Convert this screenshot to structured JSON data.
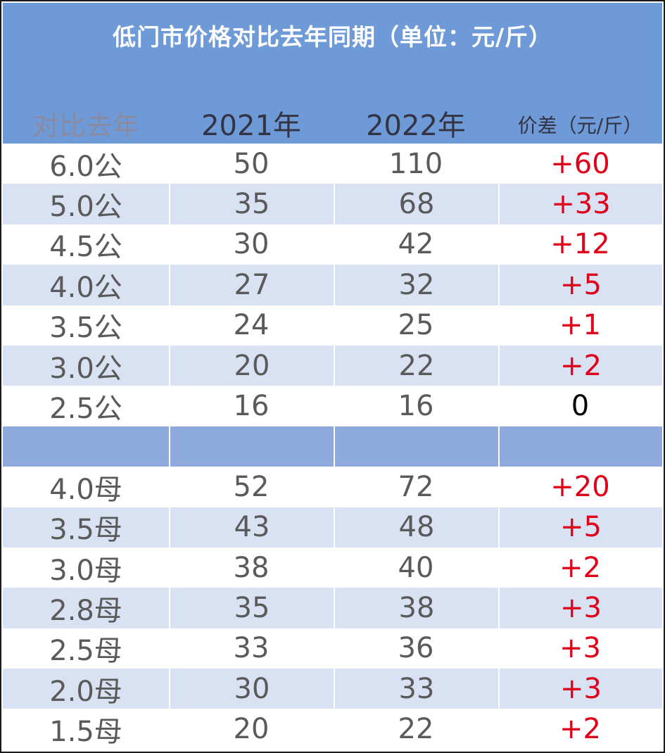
{
  "title": "低门市价格对比去年同期（单位：元/斤）",
  "columns": [
    "对比去年",
    "2021年",
    "2022年",
    "价差（元/斤）"
  ],
  "rows_gong": [
    {
      "spec": "6.0公",
      "y2021": "50",
      "y2022": "110",
      "diff": "+60"
    },
    {
      "spec": "5.0公",
      "y2021": "35",
      "y2022": "68",
      "diff": "+33"
    },
    {
      "spec": "4.5公",
      "y2021": "30",
      "y2022": "42",
      "diff": "+12"
    },
    {
      "spec": "4.0公",
      "y2021": "27",
      "y2022": "32",
      "diff": "+5"
    },
    {
      "spec": "3.5公",
      "y2021": "24",
      "y2022": "25",
      "diff": "+1"
    },
    {
      "spec": "3.0公",
      "y2021": "20",
      "y2022": "22",
      "diff": "+2"
    },
    {
      "spec": "2.5公",
      "y2021": "16",
      "y2022": "16",
      "diff": "0"
    }
  ],
  "rows_mu": [
    {
      "spec": "4.0母",
      "y2021": "52",
      "y2022": "72",
      "diff": "+20"
    },
    {
      "spec": "3.5母",
      "y2021": "43",
      "y2022": "48",
      "diff": "+5"
    },
    {
      "spec": "3.0母",
      "y2021": "38",
      "y2022": "40",
      "diff": "+2"
    },
    {
      "spec": "2.8母",
      "y2021": "35",
      "y2022": "38",
      "diff": "+3"
    },
    {
      "spec": "2.5母",
      "y2021": "33",
      "y2022": "36",
      "diff": "+3"
    },
    {
      "spec": "2.0母",
      "y2021": "30",
      "y2022": "33",
      "diff": "+3"
    },
    {
      "spec": "1.5母",
      "y2021": "20",
      "y2022": "22",
      "diff": "+2"
    }
  ],
  "colors": {
    "header_bg": "#6f9ad8",
    "row_alt_bg": "#d9e2f2",
    "separator_bg": "#8eaadc",
    "diff_positive": "#e0001b",
    "diff_zero": "#000000"
  }
}
